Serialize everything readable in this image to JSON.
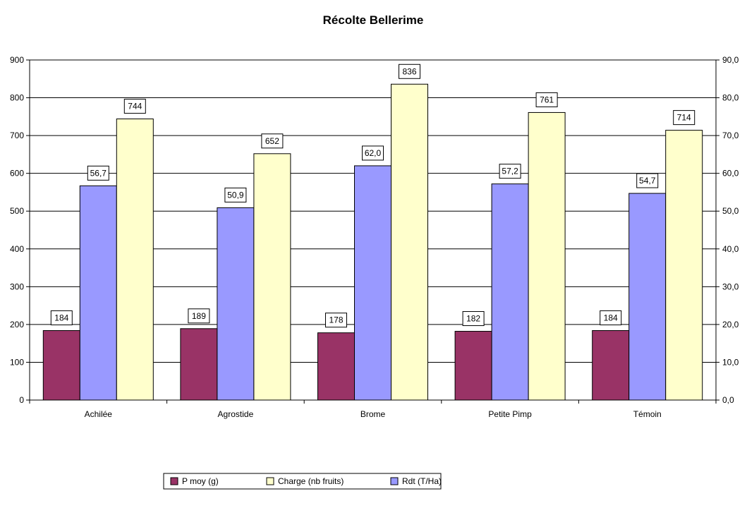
{
  "chart_data": {
    "type": "bar",
    "title": "Récolte Bellerime",
    "categories": [
      "Achilée",
      "Agrostide",
      "Brome",
      "Petite Pimp",
      "Témoin"
    ],
    "series": [
      {
        "name": "P moy (g)",
        "axis": "left",
        "values": [
          184,
          189,
          178,
          182,
          184
        ],
        "labels": [
          "184",
          "189",
          "178",
          "182",
          "184"
        ],
        "color": "#993366"
      },
      {
        "name": "Rdt (T/Ha)",
        "axis": "right",
        "values": [
          56.7,
          50.9,
          62.0,
          57.2,
          54.7
        ],
        "labels": [
          "56,7",
          "50,9",
          "62,0",
          "57,2",
          "54,7"
        ],
        "color": "#9999ff"
      },
      {
        "name": "Charge (nb fruits)",
        "axis": "left",
        "values": [
          744,
          652,
          836,
          761,
          714
        ],
        "labels": [
          "744",
          "652",
          "836",
          "761",
          "714"
        ],
        "color": "#ffffcc"
      }
    ],
    "y_left": {
      "min": 0,
      "max": 900,
      "ticks": [
        "0",
        "100",
        "200",
        "300",
        "400",
        "500",
        "600",
        "700",
        "800",
        "900"
      ]
    },
    "y_right": {
      "min": 0,
      "max": 90,
      "ticks": [
        "0,0",
        "10,0",
        "20,0",
        "30,0",
        "40,0",
        "50,0",
        "60,0",
        "70,0",
        "80,0",
        "90,0"
      ]
    },
    "legend_order": [
      "P moy (g)",
      "Charge (nb fruits)",
      "Rdt (T/Ha)"
    ],
    "legend_position": "bottom",
    "grid": true
  }
}
